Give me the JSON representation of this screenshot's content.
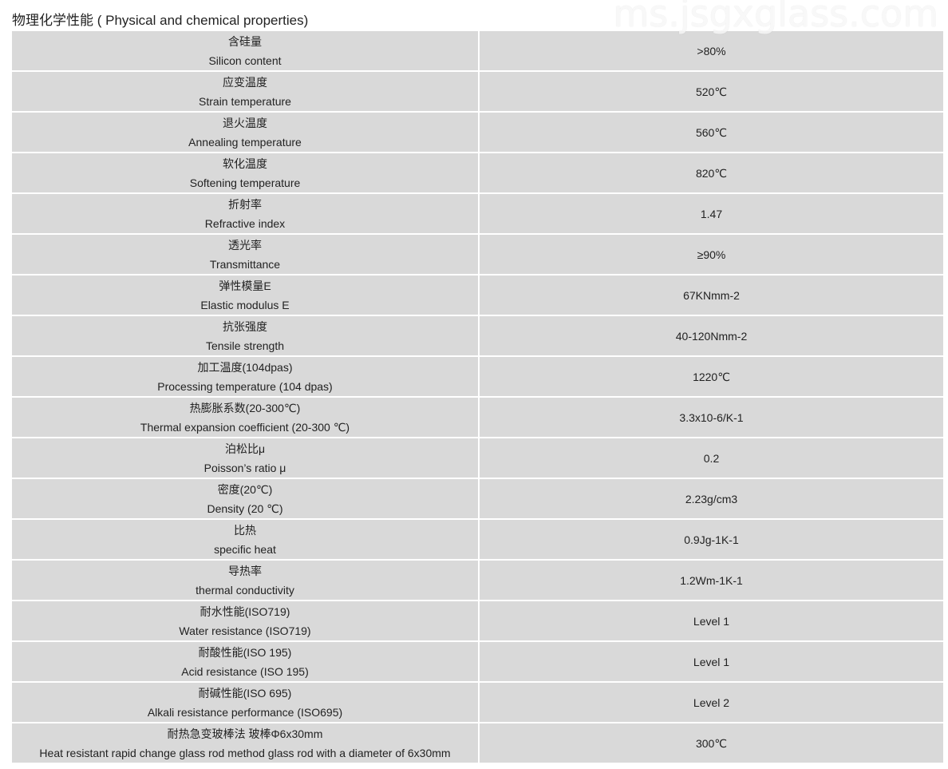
{
  "title": "物理化学性能 ( Physical and chemical properties)",
  "watermark": "ms.jsgxglass.com",
  "rows": [
    {
      "zh": "含硅量",
      "en": "Silicon content",
      "value": ">80%"
    },
    {
      "zh": "应变温度",
      "en": "Strain temperature",
      "value": "520℃"
    },
    {
      "zh": "退火温度",
      "en": "Annealing temperature",
      "value": "560℃"
    },
    {
      "zh": "软化温度",
      "en": "Softening temperature",
      "value": "820℃"
    },
    {
      "zh": "折射率",
      "en": "Refractive index",
      "value": "1.47"
    },
    {
      "zh": "透光率",
      "en": "Transmittance",
      "value": "≥90%"
    },
    {
      "zh": "弹性模量E",
      "en": "Elastic modulus E",
      "value": "67KNmm-2"
    },
    {
      "zh": "抗张强度",
      "en": "Tensile strength",
      "value": "40-120Nmm-2"
    },
    {
      "zh": "加工温度(104dpas)",
      "en": "Processing temperature (104 dpas)",
      "value": "1220℃"
    },
    {
      "zh": "热膨胀系数(20-300℃)",
      "en": "Thermal expansion coefficient (20-300 ℃)",
      "value": "3.3x10-6/K-1"
    },
    {
      "zh": "泊松比μ",
      "en": "Poisson’s ratio  μ",
      "value": "0.2"
    },
    {
      "zh": "密度(20℃)",
      "en": "Density (20 ℃)",
      "value": "2.23g/cm3"
    },
    {
      "zh": "比热",
      "en": "specific heat",
      "value": "0.9Jg-1K-1"
    },
    {
      "zh": "导热率",
      "en": "thermal conductivity",
      "value": "1.2Wm-1K-1"
    },
    {
      "zh": "耐水性能(ISO719)",
      "en": "Water resistance (ISO719)",
      "value": "Level 1"
    },
    {
      "zh": "耐酸性能(ISO 195)",
      "en": "Acid resistance (ISO 195)",
      "value": "Level 1"
    },
    {
      "zh": "耐碱性能(ISO 695)",
      "en": "Alkali resistance performance (ISO695)",
      "value": "Level 2"
    },
    {
      "zh": "耐热急变玻棒法 玻棒Φ6x30mm",
      "en": "Heat resistant rapid change glass rod method glass rod with a diameter of 6x30mm",
      "value": "300℃"
    }
  ]
}
